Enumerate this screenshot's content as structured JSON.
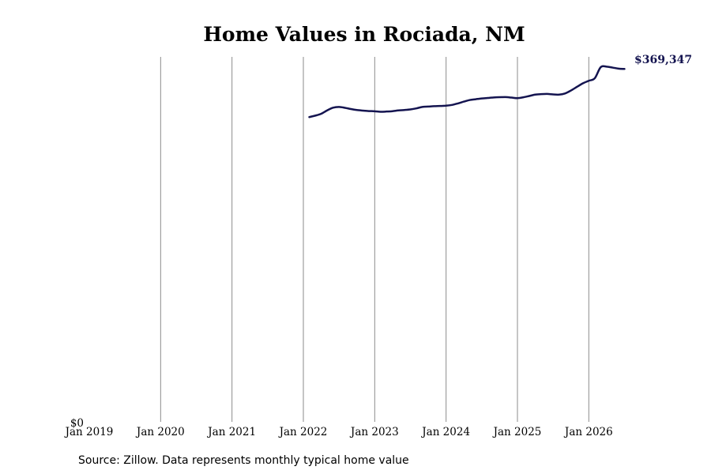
{
  "chart_data": {
    "type": "line",
    "title": "Home Values in Rociada, NM",
    "xlabel": "",
    "ylabel": "",
    "x_ticks": [
      {
        "label": "Jan 2019",
        "year": 2019.0
      },
      {
        "label": "Jan 2020",
        "year": 2020.0
      },
      {
        "label": "Jan 2021",
        "year": 2021.0
      },
      {
        "label": "Jan 2022",
        "year": 2022.0
      },
      {
        "label": "Jan 2023",
        "year": 2023.0
      },
      {
        "label": "Jan 2024",
        "year": 2024.0
      },
      {
        "label": "Jan 2025",
        "year": 2025.0
      },
      {
        "label": "Jan 2026",
        "year": 2026.0
      }
    ],
    "y_ticks": [
      {
        "label": "$0",
        "value": 0
      }
    ],
    "xlim": [
      2019.0,
      2026.55
    ],
    "ylim": [
      0,
      382000
    ],
    "grid": {
      "vertical": true,
      "horizontal": false
    },
    "colors": {
      "line": "#141450",
      "grid": "#8c8c8c",
      "end_label": "#141450"
    },
    "end_label": "$369,347",
    "source": "Source: Zillow. Data represents monthly typical home value",
    "series": [
      {
        "points": [
          [
            "2022-02",
            319000
          ],
          [
            "2022-03",
            320500
          ],
          [
            "2022-04",
            322500
          ],
          [
            "2022-05",
            326000
          ],
          [
            "2022-06",
            328800
          ],
          [
            "2022-07",
            329600
          ],
          [
            "2022-08",
            328700
          ],
          [
            "2022-09",
            327400
          ],
          [
            "2022-10",
            326400
          ],
          [
            "2022-11",
            325800
          ],
          [
            "2022-12",
            325300
          ],
          [
            "2023-01",
            325100
          ],
          [
            "2023-02",
            324500
          ],
          [
            "2023-03",
            324800
          ],
          [
            "2023-04",
            325200
          ],
          [
            "2023-05",
            326000
          ],
          [
            "2023-06",
            326400
          ],
          [
            "2023-07",
            327000
          ],
          [
            "2023-08",
            328100
          ],
          [
            "2023-09",
            329600
          ],
          [
            "2023-10",
            330000
          ],
          [
            "2023-11",
            330400
          ],
          [
            "2023-12",
            330600
          ],
          [
            "2024-01",
            330900
          ],
          [
            "2024-02",
            331700
          ],
          [
            "2024-03",
            333300
          ],
          [
            "2024-04",
            335200
          ],
          [
            "2024-05",
            336900
          ],
          [
            "2024-06",
            337700
          ],
          [
            "2024-07",
            338500
          ],
          [
            "2024-08",
            339000
          ],
          [
            "2024-09",
            339500
          ],
          [
            "2024-10",
            339800
          ],
          [
            "2024-11",
            339900
          ],
          [
            "2024-12",
            339400
          ],
          [
            "2025-01",
            338800
          ],
          [
            "2025-02",
            339700
          ],
          [
            "2025-03",
            341100
          ],
          [
            "2025-04",
            342500
          ],
          [
            "2025-05",
            343000
          ],
          [
            "2025-06",
            343200
          ],
          [
            "2025-07",
            342700
          ],
          [
            "2025-08",
            342500
          ],
          [
            "2025-09",
            343700
          ],
          [
            "2025-10",
            346800
          ],
          [
            "2025-11",
            350600
          ],
          [
            "2025-12",
            354300
          ],
          [
            "2026-01",
            357000
          ],
          [
            "2026-02",
            359600
          ],
          [
            "2026-03",
            371200
          ],
          [
            "2026-04",
            371800
          ],
          [
            "2026-05",
            370800
          ],
          [
            "2026-06",
            369700
          ],
          [
            "2026-07",
            369347
          ]
        ]
      }
    ]
  }
}
